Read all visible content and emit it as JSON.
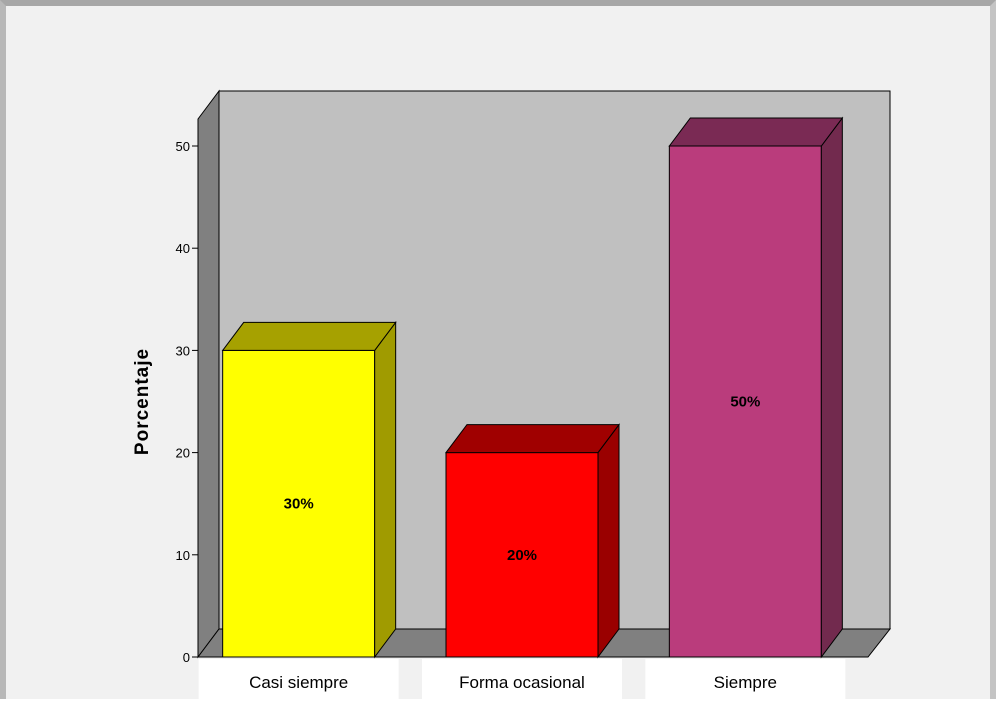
{
  "chart_data": {
    "type": "bar",
    "categories": [
      "Casi siempre",
      "Forma ocasional",
      "Siempre"
    ],
    "values": [
      30,
      20,
      50
    ],
    "data_labels": [
      "30%",
      "20%",
      "50%"
    ],
    "colors": [
      "#ffff00",
      "#ff0000",
      "#ba3c7c"
    ],
    "side_colors": [
      "#a09b00",
      "#9a0000",
      "#722a4e"
    ],
    "top_colors": [
      "#a6a100",
      "#a00000",
      "#7a2a54"
    ],
    "ylabel": "Porcentaje",
    "xlabel": "",
    "ylim": [
      0,
      50
    ],
    "yticks": [
      0,
      10,
      20,
      30,
      40,
      50
    ],
    "grid": false,
    "style": "3d",
    "wall_color": "#c0c0c0",
    "floor_color": "#808080"
  }
}
